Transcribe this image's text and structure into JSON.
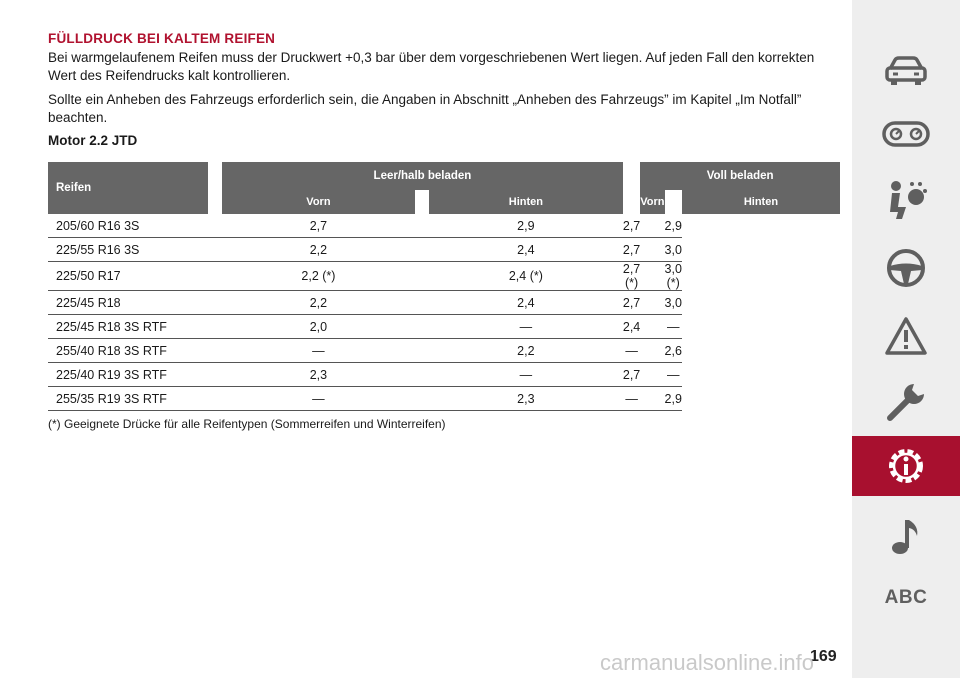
{
  "section_title": "FÜLLDRUCK BEI KALTEM REIFEN",
  "paragraph1": "Bei warmgelaufenem Reifen muss der Druckwert +0,3 bar über dem vorgeschriebenen Wert liegen. Auf jeden Fall den korrekten Wert des Reifendrucks kalt kontrollieren.",
  "paragraph2": "Sollte ein Anheben des Fahrzeugs erforderlich sein, die Angaben in Abschnitt „Anheben des Fahrzeugs” im Kapitel „Im Notfall” beachten.",
  "motor_heading": "Motor 2.2 JTD",
  "table": {
    "col_reifen": "Reifen",
    "group1": "Leer/halb beladen",
    "group2": "Voll beladen",
    "sub_vorn": "Vorn",
    "sub_hinten": "Hinten",
    "rows": [
      [
        "205/60 R16 3S",
        "2,7",
        "2,9",
        "2,7",
        "2,9"
      ],
      [
        "225/55 R16 3S",
        "2,2",
        "2,4",
        "2,7",
        "3,0"
      ],
      [
        "225/50 R17",
        "2,2 (*)",
        "2,4 (*)",
        "2,7 (*)",
        "3,0 (*)"
      ],
      [
        "225/45 R18",
        "2,2",
        "2,4",
        "2,7",
        "3,0"
      ],
      [
        "225/45 R18 3S RTF",
        "2,0",
        "—",
        "2,4",
        "—"
      ],
      [
        "255/40 R18 3S RTF",
        "—",
        "2,2",
        "—",
        "2,6"
      ],
      [
        "225/40 R19 3S RTF",
        "2,3",
        "—",
        "2,7",
        "—"
      ],
      [
        "255/35 R19 3S RTF",
        "—",
        "2,3",
        "—",
        "2,9"
      ]
    ]
  },
  "footnote": "(*) Geeignete Drücke für alle Reifentypen (Sommerreifen und Winterreifen)",
  "sidebar": {
    "icons": [
      "car-icon",
      "dashboard-gauges-icon",
      "airbag-seat-icon",
      "steering-wheel-icon",
      "warning-triangle-icon",
      "wrench-icon",
      "info-gear-icon",
      "music-note-icon"
    ],
    "abc_label": "ABC",
    "active_color": "#a8102f"
  },
  "page_number": "169",
  "watermark": "carmanualsonline.info",
  "accent_color": "#b0122f"
}
